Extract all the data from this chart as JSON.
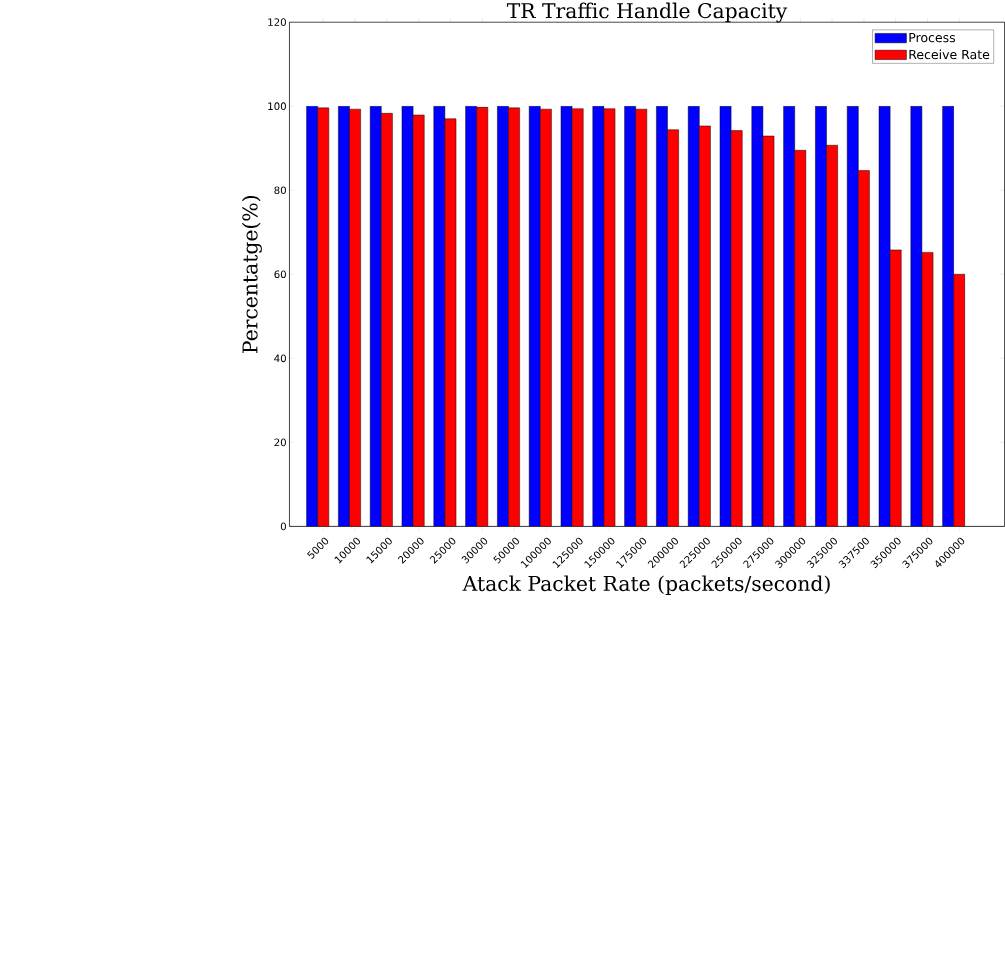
{
  "chart_data": {
    "type": "bar",
    "title": "TR Traffic Handle Capacity",
    "xlabel": "Atack Packet Rate (packets/second)",
    "ylabel": "Percentatge(%)",
    "categories": [
      "5000",
      "10000",
      "15000",
      "20000",
      "25000",
      "30000",
      "50000",
      "100000",
      "125000",
      "150000",
      "175000",
      "200000",
      "225000",
      "250000",
      "275000",
      "300000",
      "325000",
      "337500",
      "350000",
      "375000",
      "400000"
    ],
    "series": [
      {
        "name": "Process",
        "color": "#0000ff",
        "values": [
          100,
          100,
          100,
          100,
          100,
          100,
          100,
          100,
          100,
          100,
          100,
          100,
          100,
          100,
          100,
          100,
          100,
          100,
          100,
          100,
          100
        ]
      },
      {
        "name": "Receive Rate",
        "color": "#ff0000",
        "values": [
          99.6,
          99.3,
          98.3,
          97.9,
          97.0,
          99.8,
          99.6,
          99.3,
          99.4,
          99.4,
          99.3,
          94.4,
          95.3,
          94.2,
          92.9,
          89.5,
          90.7,
          84.7,
          65.8,
          65.2,
          60.0
        ]
      }
    ],
    "ylim": [
      0,
      120
    ],
    "yticks": [
      0,
      20,
      40,
      60,
      80,
      100,
      120
    ],
    "grid": false,
    "legend": "top right"
  }
}
